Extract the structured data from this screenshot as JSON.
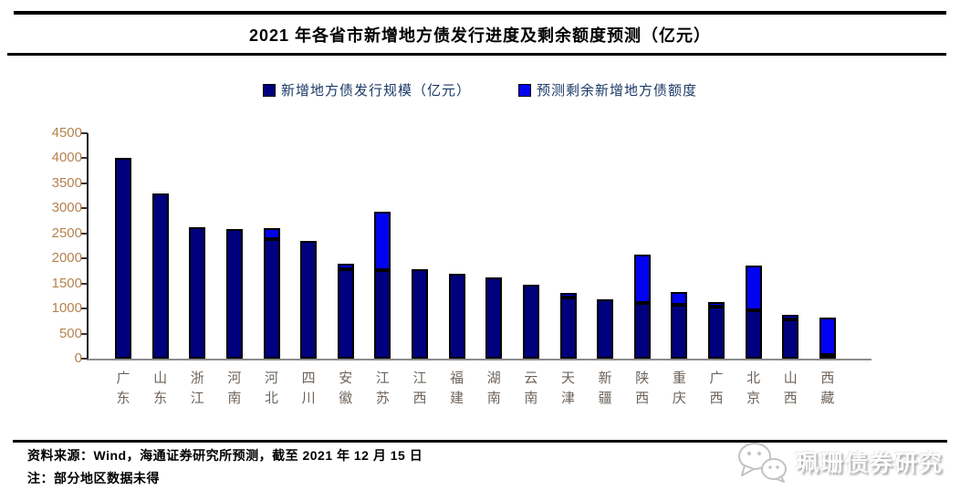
{
  "title": "2021 年各省市新增地方债发行进度及剩余额度预测（亿元）",
  "legend": [
    {
      "label": "新增地方债发行规模（亿元）",
      "color": "#00007E"
    },
    {
      "label": "预测剩余新增地方债额度",
      "color": "#0202F2"
    }
  ],
  "chart_data": {
    "type": "bar",
    "stacked": true,
    "grid": false,
    "legend_position": "top",
    "title": "2021 年各省市新增地方债发行进度及剩余额度预测（亿元）",
    "xlabel": "",
    "ylabel": "",
    "ylim": [
      0,
      4500
    ],
    "ytick_step": 500,
    "yticks": [
      0,
      500,
      1000,
      1500,
      2000,
      2500,
      3000,
      3500,
      4000,
      4500
    ],
    "categories": [
      "广东",
      "山东",
      "浙江",
      "河南",
      "河北",
      "四川",
      "安徽",
      "江苏",
      "江西",
      "福建",
      "湖南",
      "云南",
      "天津",
      "新疆",
      "陕西",
      "重庆",
      "广西",
      "北京",
      "山西",
      "西藏"
    ],
    "series": [
      {
        "name": "新增地方债发行规模（亿元）",
        "color": "#00007E",
        "values": [
          4000,
          3300,
          2630,
          2580,
          2380,
          2350,
          1780,
          1760,
          1780,
          1690,
          1620,
          1480,
          1220,
          1190,
          1120,
          1070,
          1030,
          970,
          785,
          80
        ]
      },
      {
        "name": "预测剩余新增地方债额度",
        "color": "#0202F2",
        "values": [
          0,
          0,
          0,
          0,
          210,
          0,
          110,
          1170,
          0,
          0,
          0,
          0,
          90,
          0,
          960,
          250,
          100,
          890,
          85,
          755
        ]
      }
    ]
  },
  "footer": {
    "source_line": "资料来源：Wind，海通证券研究所预测，截至 2021 年 12 月 15 日",
    "note_line": "注：部分地区数据未得"
  },
  "watermark": {
    "text": "珮珊债券研究",
    "icon": "wechat-icon"
  }
}
